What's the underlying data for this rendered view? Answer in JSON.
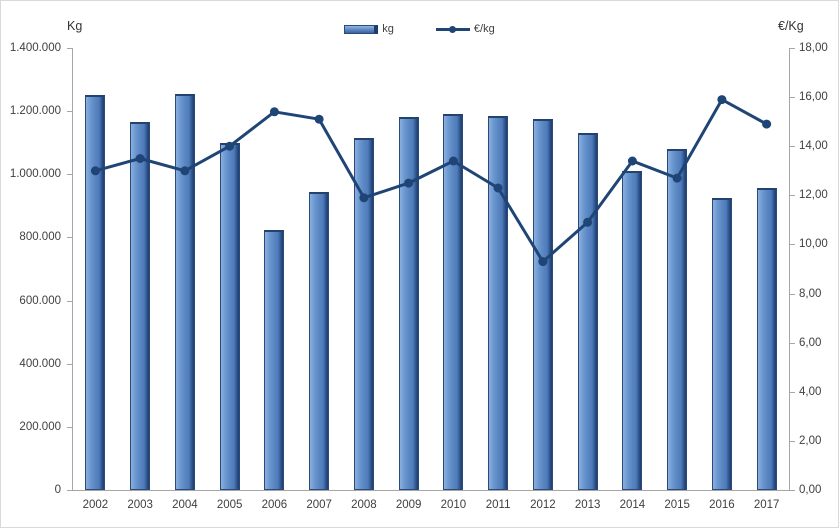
{
  "chart_data": {
    "type": "combo-bar-line",
    "title": "",
    "categories": [
      "2002",
      "2003",
      "2004",
      "2005",
      "2006",
      "2007",
      "2008",
      "2009",
      "2010",
      "2011",
      "2012",
      "2013",
      "2014",
      "2015",
      "2016",
      "2017"
    ],
    "series": [
      {
        "name": "kg",
        "type": "bar",
        "axis": "left",
        "values": [
          1250000,
          1165000,
          1255000,
          1100000,
          825000,
          945000,
          1115000,
          1180000,
          1190000,
          1185000,
          1175000,
          1130000,
          1010000,
          1080000,
          925000,
          955000
        ]
      },
      {
        "name": "€/kg",
        "type": "line",
        "axis": "right",
        "values": [
          13.0,
          13.5,
          13.0,
          14.0,
          15.4,
          15.1,
          11.9,
          12.5,
          13.4,
          12.3,
          9.3,
          10.9,
          13.4,
          12.7,
          15.9,
          14.9
        ]
      }
    ],
    "y_left": {
      "label": "Kg",
      "min": 0,
      "max": 1400000,
      "tick_step": 200000,
      "tick_labels": [
        "0",
        "200.000",
        "400.000",
        "600.000",
        "800.000",
        "1.000.000",
        "1.200.000",
        "1.400.000"
      ]
    },
    "y_right": {
      "label": "€/Kg",
      "min": 0,
      "max": 18,
      "tick_step": 2,
      "tick_labels": [
        "0,00",
        "2,00",
        "4,00",
        "6,00",
        "8,00",
        "10,00",
        "12,00",
        "14,00",
        "16,00",
        "18,00"
      ]
    },
    "legend": {
      "position": "top-center",
      "entries": [
        {
          "label": "kg",
          "swatch": "bar"
        },
        {
          "label": "€/kg",
          "swatch": "line-marker"
        }
      ]
    },
    "grid": false,
    "colors": {
      "bar_fill": "#5b87c3",
      "bar_highlight": "#8bafde",
      "bar_shadow": "#1e3c6b",
      "bar_border": "#2a4a7a",
      "line": "#1f4577",
      "axis": "#a6a6a6",
      "text": "#404040",
      "background": "#ffffff"
    }
  }
}
